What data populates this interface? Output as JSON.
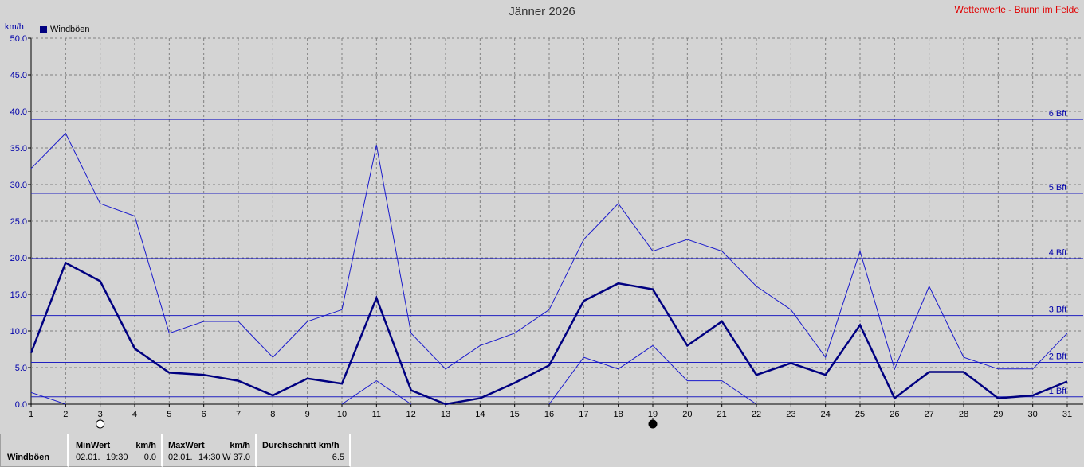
{
  "header": {
    "title": "Jänner 2026",
    "source": "Wetterwerte - Brunn im Felde",
    "unit": "km/h",
    "legend_label": "Windböen"
  },
  "colors": {
    "background": "#d4d4d4",
    "series_main": "#000080",
    "series_thin": "#1a1acc",
    "bft_lines": "#2020c0",
    "grid": "#808080",
    "source_text": "#e00000"
  },
  "chart_data": {
    "type": "line",
    "title": "Jänner 2026",
    "ylabel": "km/h",
    "ylim": [
      0,
      50
    ],
    "y_ticks": [
      "0.0",
      "5.0",
      "10.0",
      "15.0",
      "20.0",
      "25.0",
      "30.0",
      "35.0",
      "40.0",
      "45.0",
      "50.0"
    ],
    "x": [
      1,
      2,
      3,
      4,
      5,
      6,
      7,
      8,
      9,
      10,
      11,
      12,
      13,
      14,
      15,
      16,
      17,
      18,
      19,
      20,
      21,
      22,
      23,
      24,
      25,
      26,
      27,
      28,
      29,
      30,
      31
    ],
    "series": [
      {
        "name": "Windböen",
        "values": [
          7.0,
          19.3,
          16.8,
          7.6,
          4.3,
          4.0,
          3.2,
          1.2,
          3.5,
          2.8,
          14.5,
          1.9,
          0.0,
          0.8,
          2.9,
          5.3,
          14.1,
          16.5,
          15.7,
          8.0,
          11.3,
          4.0,
          5.6,
          4.0,
          10.8,
          0.8,
          4.4,
          4.4,
          0.8,
          1.2,
          3.1
        ],
        "style": "thick"
      },
      {
        "values": [
          32.2,
          37.0,
          27.4,
          25.7,
          9.7,
          11.3,
          11.3,
          6.4,
          11.3,
          12.9,
          35.4,
          9.7,
          4.8,
          8.0,
          9.7,
          12.9,
          22.5,
          27.4,
          20.9,
          22.5,
          20.9,
          16.1,
          12.9,
          6.4,
          20.9,
          4.8,
          16.1,
          6.4,
          4.8,
          4.8,
          9.7
        ],
        "style": "thin"
      },
      {
        "values": [
          1.6,
          0.0,
          null,
          null,
          null,
          null,
          null,
          null,
          null,
          0.0,
          3.2,
          0.0,
          null,
          null,
          null,
          0.0,
          6.4,
          4.8,
          8.0,
          3.2,
          3.2,
          0.0,
          null,
          null,
          null,
          null,
          null,
          null,
          null,
          null,
          null
        ],
        "style": "thin"
      }
    ],
    "bft_lines": [
      {
        "label": "1 Bft",
        "value": 1.0
      },
      {
        "label": "2 Bft",
        "value": 5.7
      },
      {
        "label": "3 Bft",
        "value": 12.1
      },
      {
        "label": "4 Bft",
        "value": 19.9
      },
      {
        "label": "5 Bft",
        "value": 28.8
      },
      {
        "label": "6 Bft",
        "value": 38.9
      }
    ],
    "moon_phases": [
      {
        "day": 3,
        "phase": "full"
      },
      {
        "day": 19,
        "phase": "new"
      }
    ],
    "grid": true
  },
  "stats": {
    "row_label": "Windböen",
    "min": {
      "label": "MinWert",
      "unit": "km/h",
      "date": "02.01.",
      "time": "19:30",
      "value": "0.0"
    },
    "max": {
      "label": "MaxWert",
      "unit": "km/h",
      "date": "02.01.",
      "time": "14:30",
      "value": "W 37.0"
    },
    "avg": {
      "label": "Durchschnitt km/h",
      "value": "6.5"
    }
  }
}
